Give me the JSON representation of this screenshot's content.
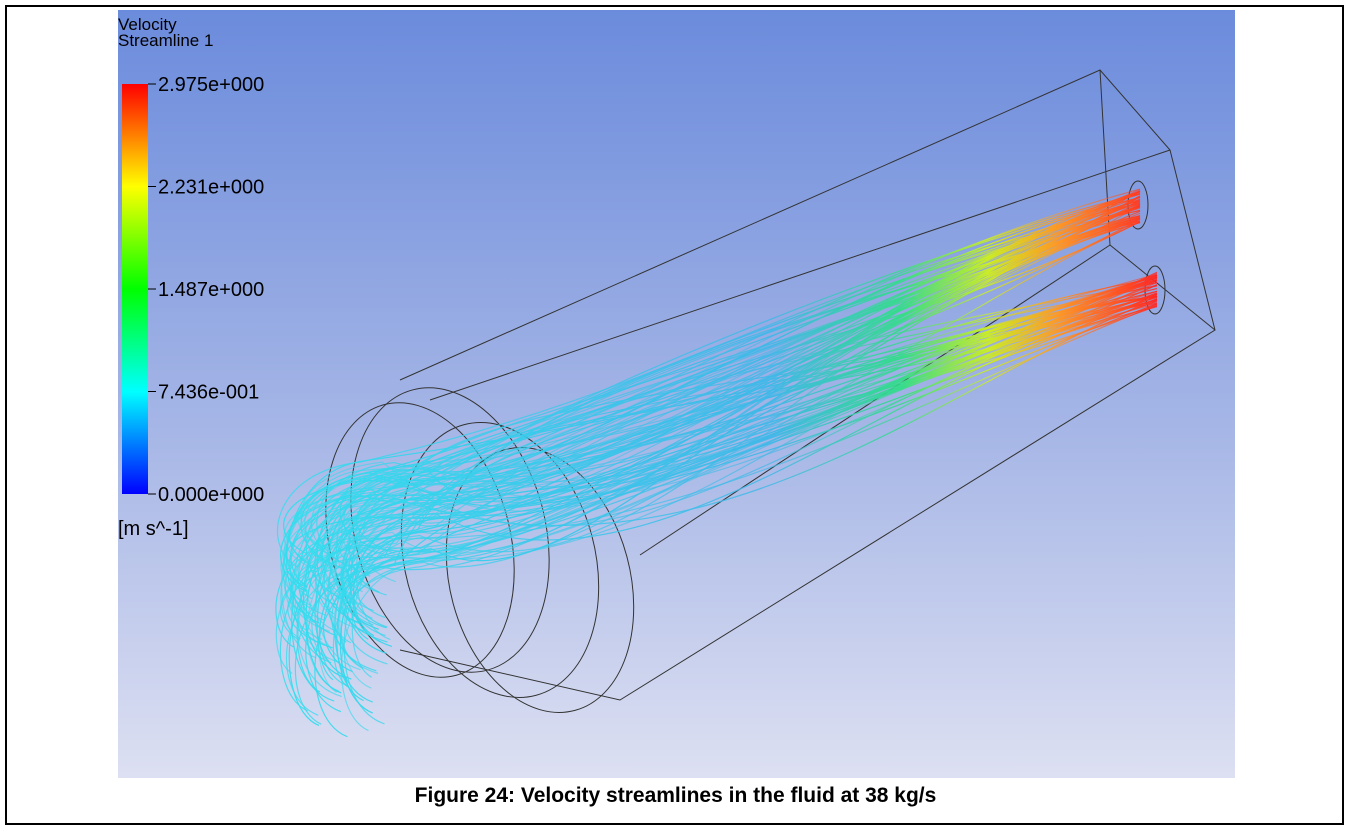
{
  "figure": {
    "legend": {
      "title": "Velocity",
      "subtitle": "Streamline 1",
      "tick_labels": [
        "2.975e+000",
        "2.231e+000",
        "1.487e+000",
        "7.436e-001",
        "0.000e+000"
      ],
      "units": "[m s^-1]"
    },
    "caption": "Figure 24: Velocity streamlines in the fluid at 38 kg/s"
  }
}
